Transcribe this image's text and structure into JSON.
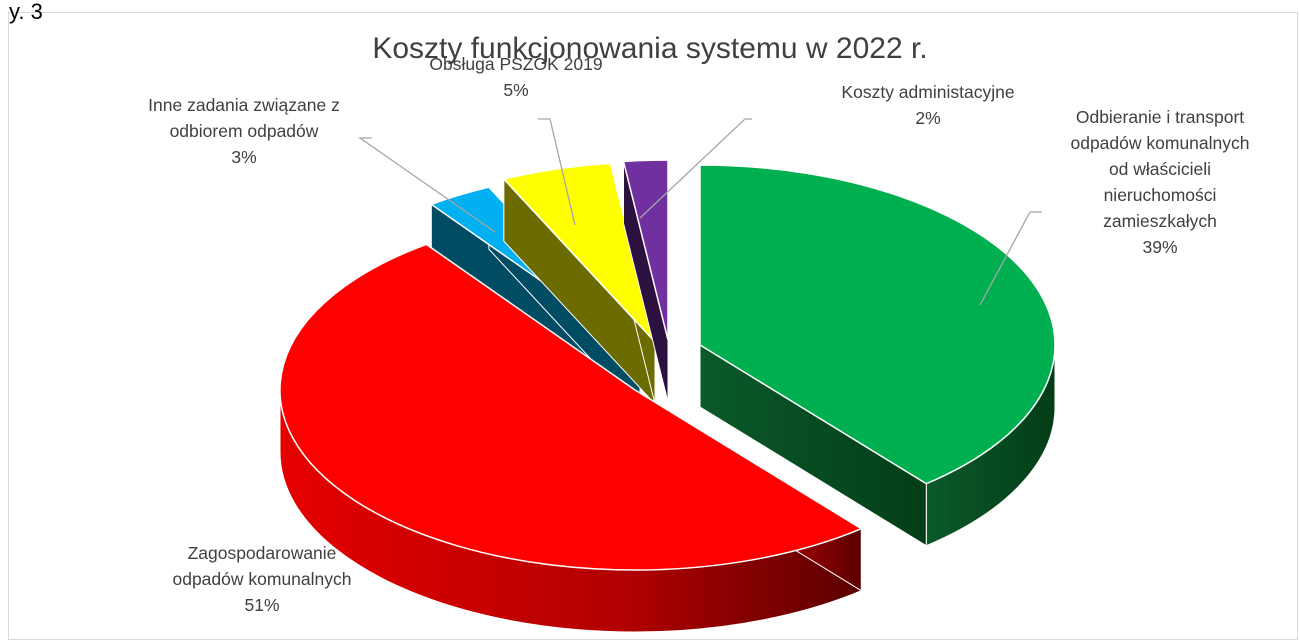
{
  "page": {
    "corner_text": "y. 3"
  },
  "chart_data": {
    "type": "pie",
    "title": "Koszty funkcjonowania systemu w 2022 r.",
    "three_d": true,
    "exploded": true,
    "slices": [
      {
        "label_lines": [
          "Odbieranie i transport",
          "odpadów komunalnych",
          "od właścicieli",
          "nieruchomości",
          "zamieszkałych"
        ],
        "percent_label": "39%",
        "value": 39,
        "color": "#00b050"
      },
      {
        "label_lines": [
          "Zagospodarowanie",
          "odpadów komunalnych"
        ],
        "percent_label": "51%",
        "value": 51,
        "color": "#ff0000"
      },
      {
        "label_lines": [
          "Inne zadania związane z",
          "odbiorem odpadów"
        ],
        "percent_label": "3%",
        "value": 3,
        "color": "#00b0f0"
      },
      {
        "label_lines": [
          "Obsługa PSZOK 2019"
        ],
        "percent_label": "5%",
        "value": 5,
        "color": "#ffff00"
      },
      {
        "label_lines": [
          "Koszty administacyjne"
        ],
        "percent_label": "2%",
        "value": 2,
        "color": "#7030a0"
      }
    ]
  }
}
